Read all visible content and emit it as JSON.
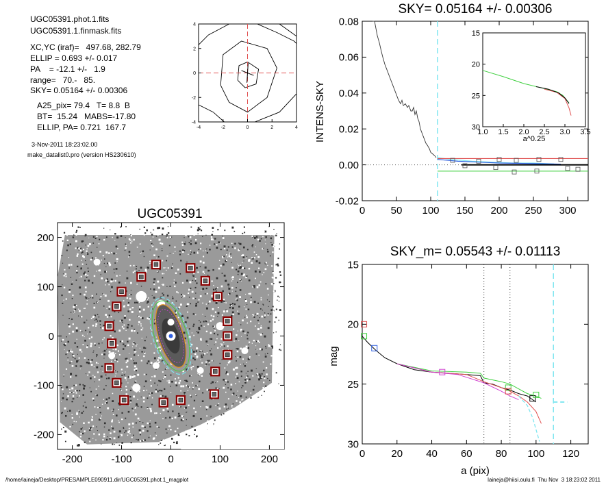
{
  "info": {
    "file1": "UGC05391.phot.1.fits",
    "file2": "UGC05391.1.finmask.fits",
    "xcyc": "XC,YC (iraf)=   497.68, 282.79",
    "ellip": "ELLIP = 0.693 +/- 0.017",
    "pa": "PA    = -12.1 +/-   1.9",
    "range": "range=   70.-   85.",
    "sky": "SKY= 0.05164 +/- 0.00306",
    "a25": "A25_pix= 79.4   T= 8.8  B",
    "bt": "BT=  15.24   MABS=-17.80",
    "ellip_pa": "ELLIP, PA= 0.721  167.7",
    "date": "3-Nov-2011 18:23:02.00",
    "program": "make_datalist0.pro (version HS230610)"
  },
  "footer": {
    "left": "/home/laineja/Desktop/PRESAMPLE090911.dir/UGC05391.phot.1_magplot",
    "right": "laineja@hiisi.oulu.fi  Thu Nov  3 18:23:02 2011"
  },
  "colors": {
    "cyan": "#7fe6f0",
    "red": "#e05050",
    "green": "#40d040",
    "blue": "#3060e0",
    "magenta": "#d040d0",
    "orange": "#e09020",
    "darkred": "#8b0000"
  },
  "chart_data": [
    {
      "type": "line",
      "panel": "contour",
      "xlim": [
        -4,
        4
      ],
      "ylim": [
        -4,
        4
      ],
      "xticks": [
        -4,
        -2,
        0,
        2,
        4
      ],
      "yticks": [
        -4,
        -2,
        0,
        2,
        4
      ],
      "center": [
        0,
        0
      ],
      "contours": [
        [
          [
            -0.8,
            -0.6
          ],
          [
            -0.7,
            0.6
          ],
          [
            0,
            0.9
          ],
          [
            0.9,
            0.3
          ],
          [
            0.7,
            -0.9
          ],
          [
            -0.2,
            -1.2
          ],
          [
            -0.8,
            -0.6
          ]
        ],
        [
          [
            -2.2,
            -1.0
          ],
          [
            -2.0,
            1.5
          ],
          [
            -0.5,
            2.6
          ],
          [
            1.6,
            2.0
          ],
          [
            2.4,
            0.4
          ],
          [
            1.6,
            -2.0
          ],
          [
            0,
            -3.2
          ],
          [
            -1.5,
            -2.4
          ],
          [
            -2.2,
            -1.0
          ]
        ],
        [
          [
            -4,
            2.3
          ],
          [
            -3.2,
            3.1
          ],
          [
            -1.5,
            4
          ]
        ],
        [
          [
            0.8,
            4
          ],
          [
            2.4,
            3.3
          ],
          [
            3.8,
            2.6
          ],
          [
            4,
            2.4
          ]
        ],
        [
          [
            -4,
            -2.6
          ],
          [
            -2.8,
            -3.2
          ],
          [
            -1.9,
            -4
          ]
        ],
        [
          [
            0.6,
            -4
          ],
          [
            2.6,
            -3.2
          ],
          [
            4,
            -1.7
          ]
        ],
        [
          [
            2.6,
            4
          ],
          [
            3.3,
            3.5
          ],
          [
            4,
            3.0
          ]
        ]
      ]
    },
    {
      "type": "line",
      "title": "SKY= 0.05164 +/- 0.00306",
      "xlabel": "",
      "ylabel": "INTENS-SKY",
      "xlim": [
        0,
        330
      ],
      "ylim": [
        -0.02,
        0.08
      ],
      "xticks": [
        0,
        50,
        100,
        150,
        200,
        250,
        300
      ],
      "yticks": [
        -0.02,
        0.0,
        0.02,
        0.04,
        0.06,
        0.08
      ],
      "ytick_labels": [
        "-0.02",
        "0.00",
        "0.02",
        "0.04",
        "0.06",
        "0.08"
      ],
      "sky_marker_x": 110,
      "profile": [
        [
          15,
          0.082
        ],
        [
          18,
          0.08
        ],
        [
          20,
          0.076
        ],
        [
          22,
          0.072
        ],
        [
          25,
          0.068
        ],
        [
          28,
          0.063
        ],
        [
          30,
          0.06
        ],
        [
          33,
          0.056
        ],
        [
          36,
          0.053
        ],
        [
          39,
          0.05
        ],
        [
          42,
          0.047
        ],
        [
          45,
          0.044
        ],
        [
          48,
          0.041
        ],
        [
          50,
          0.039
        ],
        [
          53,
          0.036
        ],
        [
          56,
          0.034
        ],
        [
          58,
          0.036
        ],
        [
          60,
          0.033
        ],
        [
          63,
          0.034
        ],
        [
          66,
          0.032
        ],
        [
          68,
          0.033
        ],
        [
          71,
          0.03
        ],
        [
          73,
          0.03
        ],
        [
          75,
          0.032
        ],
        [
          77,
          0.028
        ],
        [
          79,
          0.03
        ],
        [
          81,
          0.026
        ],
        [
          83,
          0.024
        ],
        [
          85,
          0.02
        ],
        [
          88,
          0.017
        ],
        [
          90,
          0.015
        ],
        [
          93,
          0.012
        ],
        [
          95,
          0.011
        ],
        [
          98,
          0.009
        ],
        [
          100,
          0.007
        ],
        [
          103,
          0.006
        ],
        [
          106,
          0.005
        ],
        [
          108,
          0.004
        ]
      ],
      "sky_lines": [
        {
          "color": "red",
          "points": [
            [
              110,
              0.0035
            ],
            [
              330,
              0.0035
            ]
          ]
        },
        {
          "color": "green",
          "points": [
            [
              110,
              -0.0035
            ],
            [
              330,
              -0.0035
            ]
          ]
        },
        {
          "color": "black",
          "points": [
            [
              145,
              0.0
            ],
            [
              330,
              0.0
            ]
          ]
        }
      ],
      "sky_profiles": [
        {
          "color": "cyan",
          "points": [
            [
              110,
              0.004
            ],
            [
              130,
              0.003
            ],
            [
              160,
              0.002
            ],
            [
              190,
              0.0015
            ],
            [
              220,
              0.001
            ],
            [
              250,
              0.001
            ],
            [
              280,
              0.0005
            ]
          ]
        },
        {
          "color": "blue",
          "points": [
            [
              110,
              0.003
            ],
            [
              140,
              0.002
            ],
            [
              170,
              0.0015
            ],
            [
              200,
              0.001
            ],
            [
              230,
              0.0008
            ],
            [
              260,
              0.0006
            ],
            [
              290,
              0.0004
            ]
          ]
        }
      ],
      "markers": [
        [
          132,
          0.0025
        ],
        [
          150,
          -0.0005
        ],
        [
          170,
          0.002
        ],
        [
          195,
          -0.0015
        ],
        [
          200,
          0.003
        ],
        [
          222,
          -0.004
        ],
        [
          225,
          0.0025
        ],
        [
          255,
          -0.0035
        ],
        [
          258,
          0.003
        ],
        [
          290,
          0.003
        ],
        [
          300,
          -0.002
        ],
        [
          315,
          -0.0025
        ]
      ],
      "inset": {
        "xlabel": "a^0.25",
        "xlim": [
          1.0,
          3.5
        ],
        "ylim": [
          30,
          15
        ],
        "xticks": [
          1.0,
          1.5,
          2.0,
          2.5,
          3.0,
          3.5
        ],
        "xtick_labels": [
          "1.0",
          "1.5",
          "2.0",
          "2.5",
          "3.0",
          "3.5"
        ],
        "yticks": [
          15,
          20,
          25,
          30
        ],
        "green": [
          [
            1.0,
            21.0
          ],
          [
            1.5,
            22.0
          ],
          [
            2.0,
            23.1
          ],
          [
            2.5,
            23.9
          ],
          [
            2.8,
            24.4
          ],
          [
            2.95,
            25.0
          ],
          [
            3.1,
            26.2
          ]
        ],
        "black": [
          [
            2.3,
            23.6
          ],
          [
            2.6,
            24.0
          ],
          [
            2.85,
            24.6
          ],
          [
            3.0,
            25.4
          ],
          [
            3.1,
            26.3
          ]
        ],
        "red": [
          [
            2.5,
            24.0
          ],
          [
            2.8,
            24.5
          ],
          [
            3.0,
            25.5
          ],
          [
            3.1,
            27.0
          ],
          [
            3.15,
            28.2
          ]
        ]
      }
    },
    {
      "type": "scatter",
      "title": "UGC05391",
      "xlim": [
        -230,
        230
      ],
      "ylim": [
        -230,
        230
      ],
      "xticks": [
        -200,
        -100,
        0,
        100,
        200
      ],
      "yticks": [
        -200,
        -100,
        0,
        100,
        200
      ],
      "sky_boxes": [
        [
          -30,
          145
        ],
        [
          -60,
          120
        ],
        [
          -100,
          90
        ],
        [
          -110,
          60
        ],
        [
          -125,
          20
        ],
        [
          -120,
          -15
        ],
        [
          -125,
          -65
        ],
        [
          -110,
          -95
        ],
        [
          -95,
          -130
        ],
        [
          -15,
          -135
        ],
        [
          20,
          -130
        ],
        [
          88,
          -118
        ],
        [
          90,
          -72
        ],
        [
          115,
          -38
        ],
        [
          115,
          0
        ],
        [
          115,
          30
        ],
        [
          95,
          80
        ],
        [
          70,
          112
        ],
        [
          40,
          138
        ]
      ],
      "galaxy": {
        "cx": 0,
        "cy": 0,
        "a": 66,
        "b": 25,
        "pa_deg": -17
      }
    },
    {
      "type": "line",
      "title": "SKY_m=  0.05543 +/- 0.01113",
      "xlabel": "a (pix)",
      "ylabel": "mag",
      "xlim": [
        0,
        130
      ],
      "ylim": [
        30,
        15
      ],
      "xticks": [
        0,
        20,
        40,
        60,
        80,
        100,
        120
      ],
      "yticks": [
        15,
        20,
        25,
        30
      ],
      "vlines_dotted": [
        70,
        85
      ],
      "vline_dashed": 110,
      "sky_segment": [
        [
          110,
          26.5
        ],
        [
          118,
          26.5
        ]
      ],
      "profiles": [
        {
          "color": "black",
          "points": [
            [
              0,
              21
            ],
            [
              3,
              21.5
            ],
            [
              8,
              22.2
            ],
            [
              13,
              22.8
            ],
            [
              20,
              23.3
            ],
            [
              30,
              23.8
            ],
            [
              40,
              24.0
            ],
            [
              50,
              24.1
            ],
            [
              60,
              24.2
            ],
            [
              68,
              24.3
            ],
            [
              70,
              24.9
            ],
            [
              75,
              25.0
            ],
            [
              80,
              25.3
            ],
            [
              85,
              25.5
            ],
            [
              90,
              25.8
            ],
            [
              95,
              26.0
            ],
            [
              100,
              26.5
            ]
          ]
        },
        {
          "color": "red",
          "points": [
            [
              20,
              23.3
            ],
            [
              40,
              24.0
            ],
            [
              60,
              24.2
            ],
            [
              70,
              24.8
            ],
            [
              80,
              25.3
            ],
            [
              85,
              25.6
            ],
            [
              90,
              26.0
            ],
            [
              95,
              26.5
            ],
            [
              100,
              27.3
            ],
            [
              103,
              28.3
            ]
          ]
        },
        {
          "color": "green",
          "points": [
            [
              20,
              23.3
            ],
            [
              40,
              23.9
            ],
            [
              60,
              24.0
            ],
            [
              68,
              24.1
            ],
            [
              70,
              24.5
            ],
            [
              80,
              24.8
            ],
            [
              85,
              25.0
            ],
            [
              90,
              25.4
            ],
            [
              95,
              25.8
            ],
            [
              100,
              26.0
            ],
            [
              103,
              26.2
            ]
          ]
        },
        {
          "color": "magenta",
          "points": [
            [
              20,
              23.3
            ],
            [
              40,
              24.0
            ],
            [
              55,
              24.2
            ],
            [
              70,
              24.9
            ],
            [
              80,
              25.6
            ],
            [
              85,
              26.0
            ],
            [
              90,
              26.3
            ]
          ]
        },
        {
          "color": "cyan",
          "points": [
            [
              90,
              26.0
            ],
            [
              95,
              26.8
            ],
            [
              98,
              27.8
            ],
            [
              100,
              28.8
            ],
            [
              102,
              29.8
            ]
          ]
        }
      ],
      "markers": [
        {
          "color": "red",
          "x": 1,
          "y": 20
        },
        {
          "color": "green",
          "x": 1,
          "y": 21
        },
        {
          "color": "blue",
          "x": 7,
          "y": 22
        },
        {
          "color": "magenta",
          "x": 46,
          "y": 24
        },
        {
          "color": "green",
          "x": 84,
          "y": 25.3
        },
        {
          "color": "red",
          "x": 84,
          "y": 25.6
        },
        {
          "color": "black",
          "x": 98,
          "y": 26.2
        },
        {
          "color": "green",
          "x": 100,
          "y": 25.9
        }
      ]
    }
  ]
}
